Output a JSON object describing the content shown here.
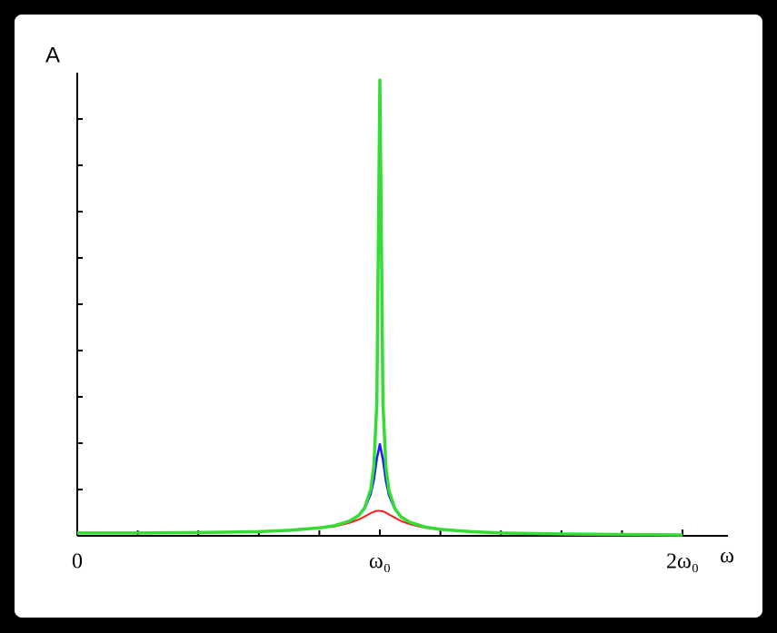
{
  "chart_data": {
    "type": "line",
    "xlabel": "ω",
    "ylabel": "A",
    "x": [
      0,
      0.2,
      0.4,
      0.6,
      0.7,
      0.8,
      0.85,
      0.9,
      0.93,
      0.95,
      0.97,
      0.98,
      0.99,
      1.0,
      1.01,
      1.02,
      1.03,
      1.05,
      1.07,
      1.1,
      1.15,
      1.2,
      1.3,
      1.4,
      1.6,
      1.8,
      2.0
    ],
    "series": [
      {
        "color": "#ff1a1a",
        "width": 2,
        "values": [
          0.06,
          0.06,
          0.07,
          0.09,
          0.12,
          0.16,
          0.2,
          0.28,
          0.35,
          0.42,
          0.49,
          0.52,
          0.54,
          0.54,
          0.53,
          0.5,
          0.46,
          0.39,
          0.32,
          0.25,
          0.17,
          0.13,
          0.09,
          0.06,
          0.04,
          0.03,
          0.02
        ]
      },
      {
        "color": "#1a1aff",
        "width": 2.5,
        "values": [
          0.06,
          0.06,
          0.07,
          0.09,
          0.12,
          0.17,
          0.22,
          0.31,
          0.43,
          0.59,
          0.91,
          1.21,
          1.67,
          1.98,
          1.64,
          1.18,
          0.88,
          0.56,
          0.4,
          0.28,
          0.18,
          0.14,
          0.09,
          0.06,
          0.04,
          0.03,
          0.02
        ]
      },
      {
        "color": "#33dd33",
        "width": 3.5,
        "values": [
          0.06,
          0.06,
          0.07,
          0.09,
          0.12,
          0.17,
          0.22,
          0.32,
          0.44,
          0.61,
          1.01,
          1.5,
          2.88,
          9.84,
          2.85,
          1.47,
          0.98,
          0.58,
          0.41,
          0.29,
          0.19,
          0.14,
          0.09,
          0.06,
          0.04,
          0.03,
          0.02
        ]
      }
    ],
    "xlim": [
      0,
      2.15
    ],
    "ylim": [
      0,
      10
    ],
    "xticks": [
      0,
      {
        "value": 1,
        "label": "ω₀"
      },
      {
        "value": 2,
        "label": "2ω₀"
      }
    ],
    "xminorticks": [
      0.2,
      0.4,
      0.6,
      0.8,
      1.2,
      1.4,
      1.6,
      1.8
    ],
    "yminorticks": [
      1,
      2,
      3,
      4,
      5,
      6,
      7,
      8,
      9
    ]
  }
}
